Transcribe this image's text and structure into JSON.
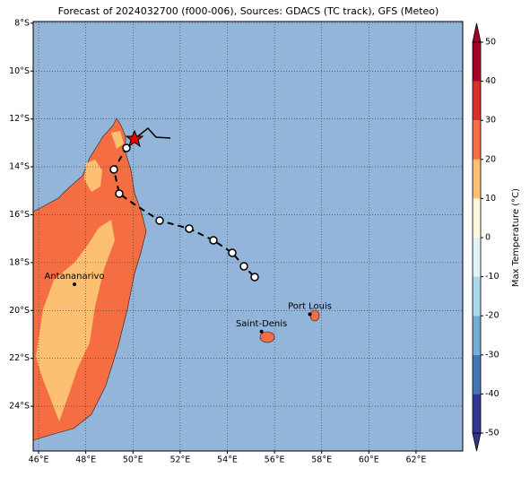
{
  "title": "Forecast of 2024032700 (f000-006), Sources: GDACS (TC track), GFS (Meteo)",
  "map": {
    "lon_range": [
      45.77,
      63.98
    ],
    "lat_range": [
      -25.87,
      -7.93
    ],
    "xticks": [
      {
        "value": 46,
        "label": "46°E"
      },
      {
        "value": 48,
        "label": "48°E"
      },
      {
        "value": 50,
        "label": "50°E"
      },
      {
        "value": 52,
        "label": "52°E"
      },
      {
        "value": 54,
        "label": "54°E"
      },
      {
        "value": 56,
        "label": "56°E"
      },
      {
        "value": 58,
        "label": "58°E"
      },
      {
        "value": 60,
        "label": "60°E"
      },
      {
        "value": 62,
        "label": "62°E"
      }
    ],
    "yticks": [
      {
        "value": -8,
        "label": "8°S"
      },
      {
        "value": -10,
        "label": "10°S"
      },
      {
        "value": -12,
        "label": "12°S"
      },
      {
        "value": -14,
        "label": "14°S"
      },
      {
        "value": -16,
        "label": "16°S"
      },
      {
        "value": -18,
        "label": "18°S"
      },
      {
        "value": -20,
        "label": "20°S"
      },
      {
        "value": -22,
        "label": "22°S"
      },
      {
        "value": -24,
        "label": "24°S"
      }
    ],
    "grid": true,
    "cities": [
      {
        "name": "Antananarivo",
        "lon": 47.52,
        "lat": -18.91
      },
      {
        "name": "Saint-Denis",
        "lon": 55.45,
        "lat": -20.88
      },
      {
        "name": "Port Louis",
        "lon": 57.5,
        "lat": -20.16
      }
    ]
  },
  "colorbar": {
    "label": "Max Temperature (°C)",
    "lim": [
      -50,
      50
    ],
    "ticks": [
      -50,
      -40,
      -30,
      -20,
      -10,
      0,
      10,
      20,
      30,
      40,
      50
    ],
    "colors": [
      "#313695",
      "#4575b4",
      "#74add1",
      "#abd9e9",
      "#e0f3f8",
      "#fff7dc",
      "#fdbf71",
      "#f46d43",
      "#d73027",
      "#a50026"
    ]
  }
}
